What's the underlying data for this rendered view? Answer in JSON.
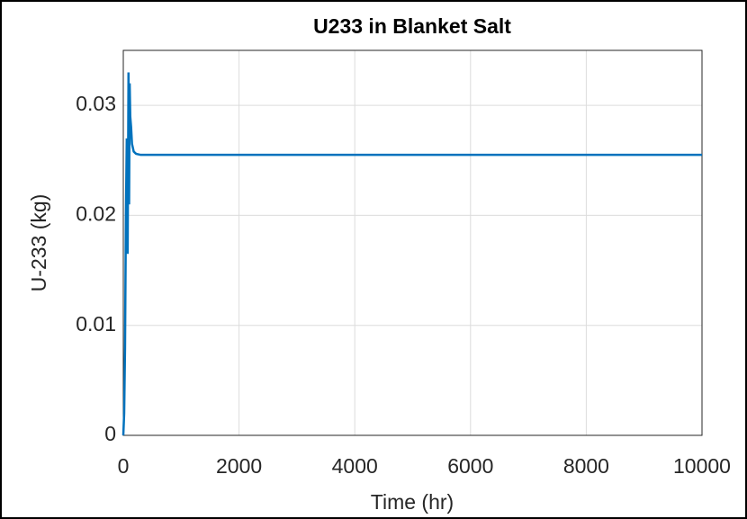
{
  "chart_data": {
    "type": "line",
    "title": "U233 in Blanket Salt",
    "xlabel": "Time (hr)",
    "ylabel": "U-233 (kg)",
    "x": [
      0,
      15,
      30,
      45,
      60,
      75,
      90,
      100,
      110,
      120,
      135,
      150,
      180,
      220,
      300,
      500,
      1000,
      2000,
      4000,
      6000,
      8000,
      10000
    ],
    "series": [
      {
        "name": "U233",
        "color": "#0072bd",
        "values": [
          0,
          0.002,
          0.008,
          0.02,
          0.027,
          0.0165,
          0.033,
          0.021,
          0.032,
          0.029,
          0.028,
          0.0265,
          0.0258,
          0.0256,
          0.0255,
          0.0255,
          0.0255,
          0.0255,
          0.0255,
          0.0255,
          0.0255,
          0.0255
        ]
      }
    ],
    "xlim": [
      0,
      10000
    ],
    "xticks": [
      0,
      2000,
      4000,
      6000,
      8000,
      10000
    ],
    "ylim": [
      0,
      0.035
    ],
    "yticks": [
      0,
      0.01,
      0.02,
      0.03
    ],
    "grid": true
  }
}
